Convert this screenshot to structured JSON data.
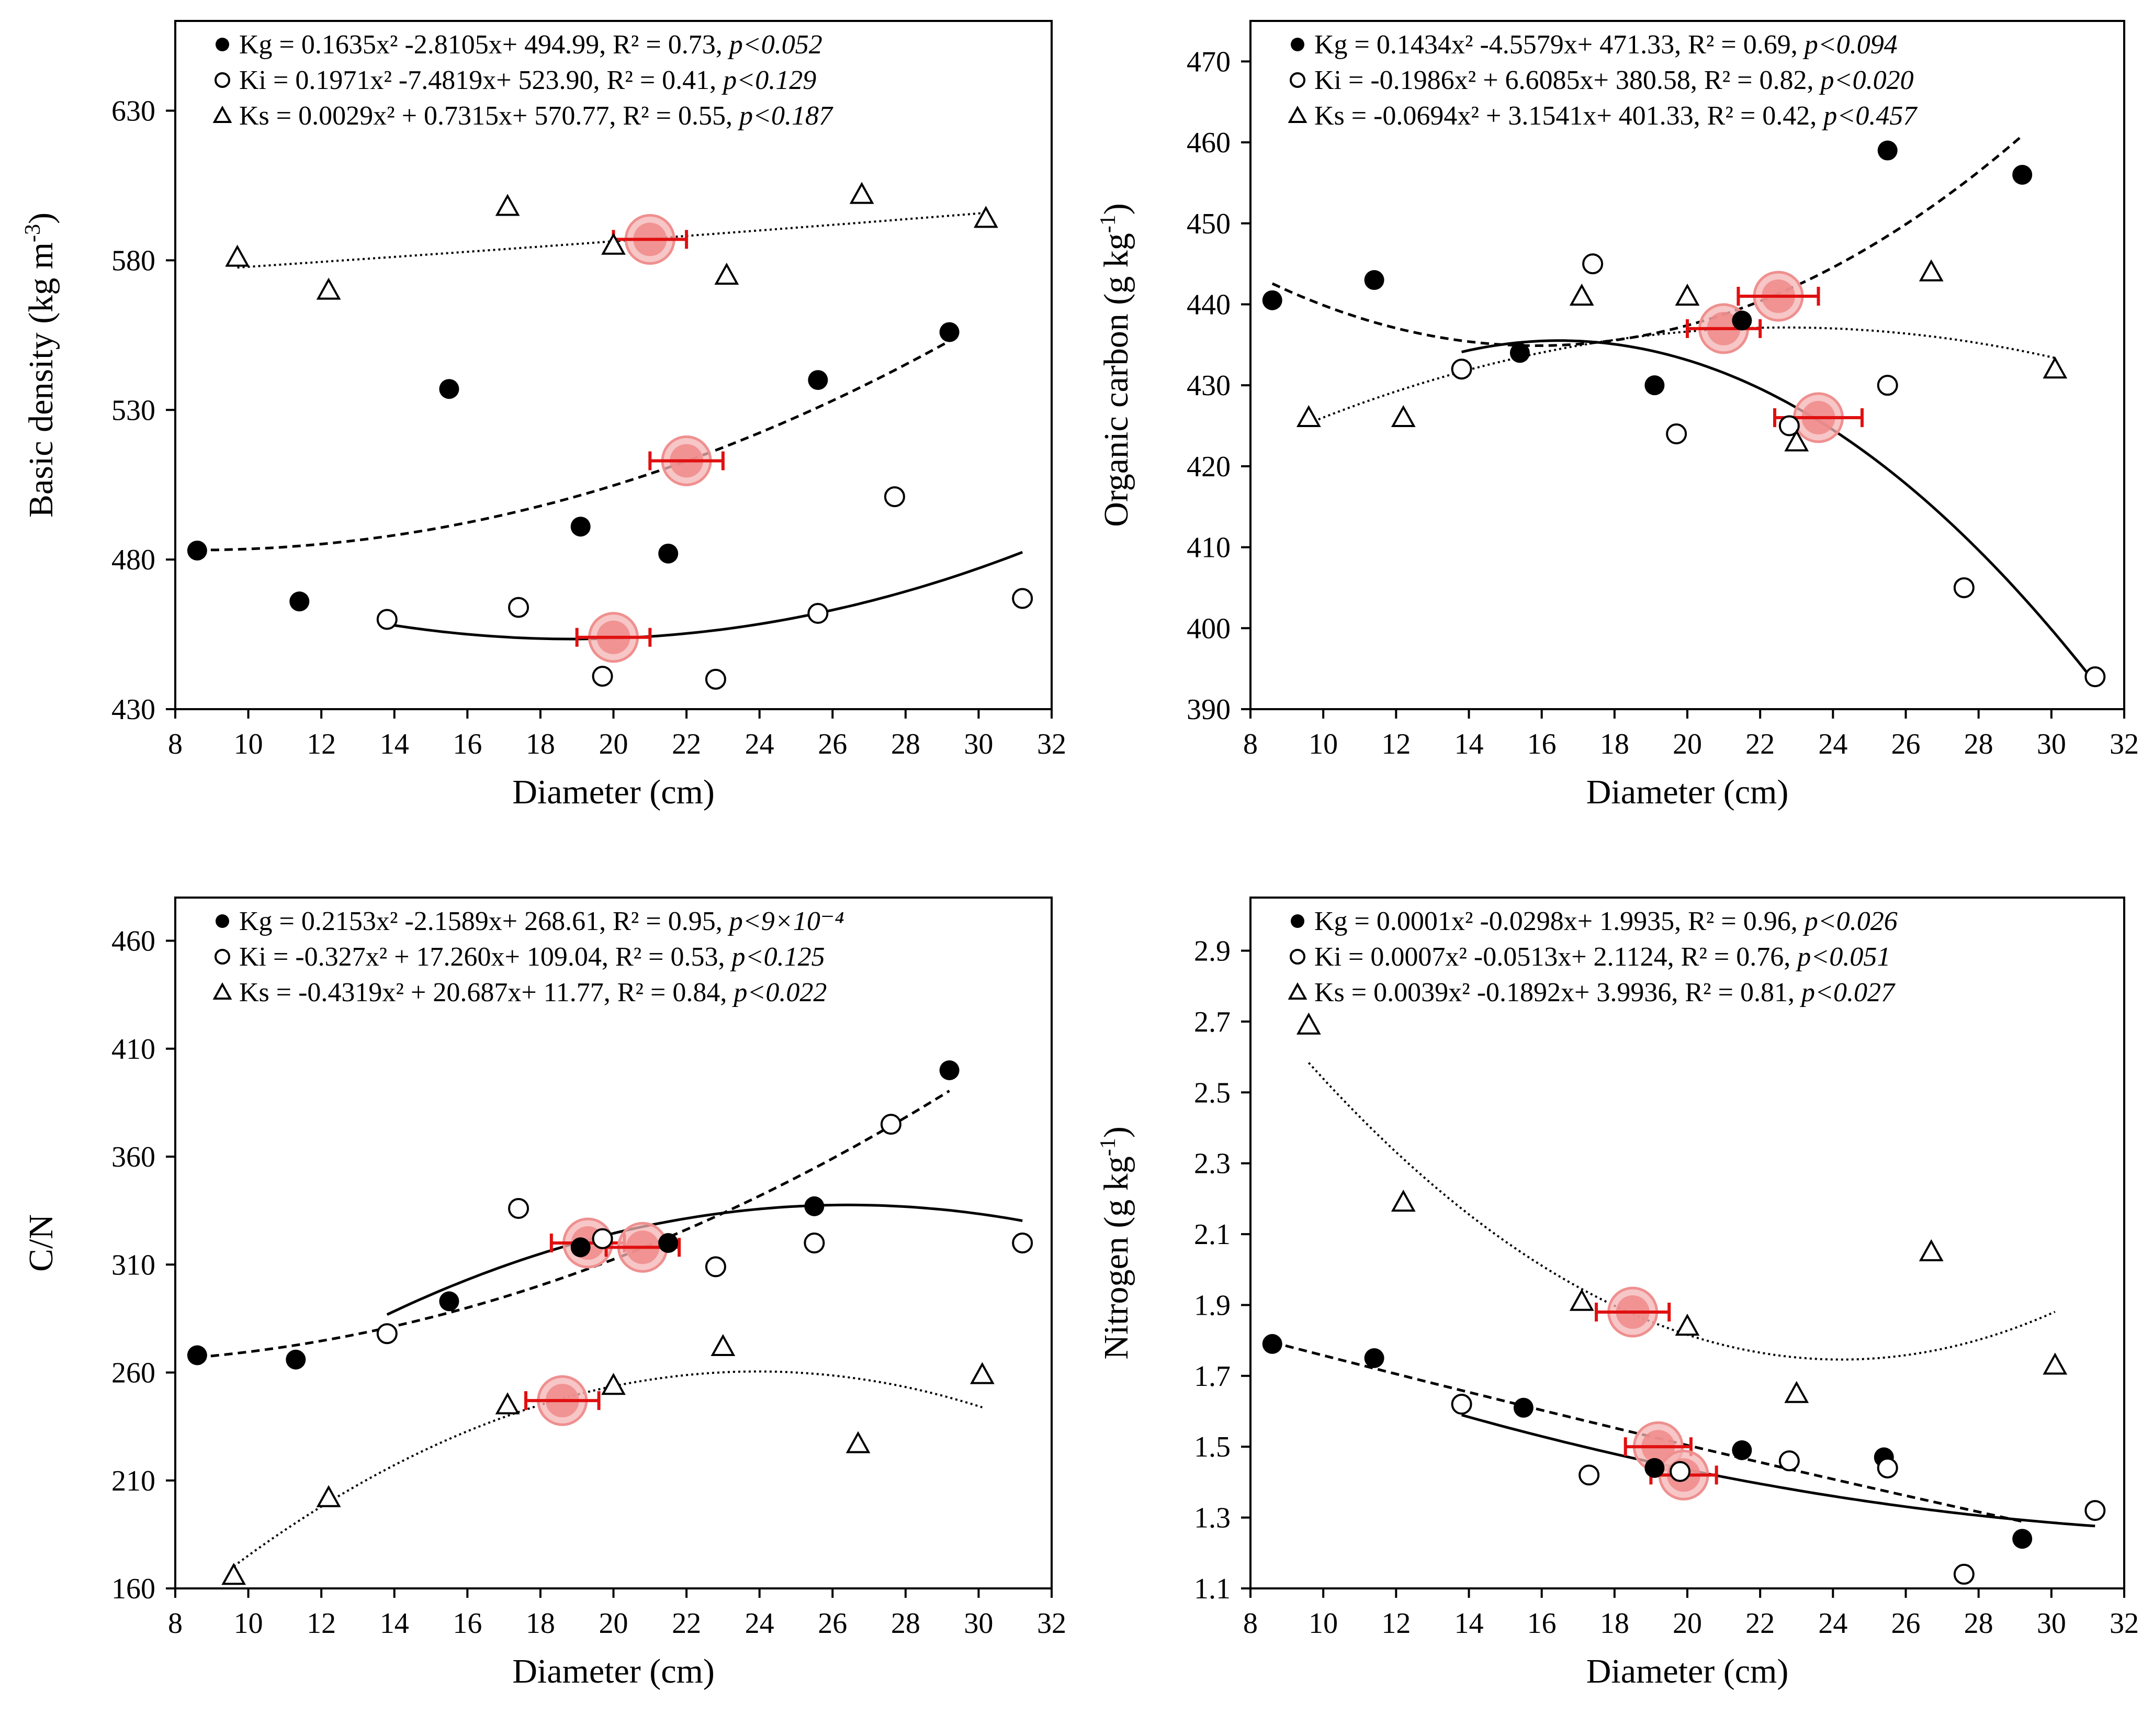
{
  "chart_data": [
    {
      "type": "scatter",
      "id": "basic-density",
      "xlabel": "Diameter (cm)",
      "ylabel": "Basic density (kg m-3)",
      "ylabel_main": "Basic density (kg m",
      "ylabel_sup": "-3",
      "ylabel_close": ")",
      "xlim": [
        8,
        32
      ],
      "ylim": [
        430,
        660
      ],
      "xticks": [
        8,
        10,
        12,
        14,
        16,
        18,
        20,
        22,
        24,
        26,
        28,
        30,
        32
      ],
      "yticks": [
        430,
        480,
        530,
        580,
        630
      ],
      "legend_position": "top",
      "series": [
        {
          "name": "Kg",
          "marker": "filled-circle",
          "legend_text": "Kg = 0.1635x² -2.8105x+ 494.99, R² = 0.73, ",
          "p_text": "p<0.052",
          "x": [
            8.6,
            11.4,
            15.5,
            19.1,
            21.5,
            25.6,
            29.2
          ],
          "y": [
            483,
            466,
            537,
            491,
            482,
            540,
            556
          ],
          "fit_style": "dashed",
          "fit_x": [
            8.6,
            29.2
          ]
        },
        {
          "name": "Ki",
          "marker": "open-circle",
          "legend_text": "Ki = 0.1971x² -7.4819x+ 523.90, R² = 0.41, ",
          "p_text": "p<0.129",
          "x": [
            13.8,
            17.4,
            19.7,
            22.8,
            25.6,
            27.7,
            31.2
          ],
          "y": [
            460,
            464,
            441,
            440,
            462,
            501,
            467
          ],
          "fit_style": "solid",
          "fit_x": [
            13.8,
            31.2
          ]
        },
        {
          "name": "Ks",
          "marker": "open-triangle",
          "legend_text": "Ks = 0.0029x² + 0.7315x+ 570.77, R² = 0.55, ",
          "p_text": "p<0.187",
          "x": [
            9.7,
            12.2,
            17.1,
            20.0,
            23.1,
            26.8,
            30.2
          ],
          "y": [
            581,
            570,
            598,
            585,
            575,
            602,
            594
          ],
          "fit_style": "dotted",
          "fit_x": [
            9.7,
            30.2
          ]
        }
      ],
      "mean_points": [
        {
          "x": 21.0,
          "y": 587,
          "xerr": 1.0
        },
        {
          "x": 22.0,
          "y": 513,
          "xerr": 1.0
        },
        {
          "x": 20.0,
          "y": 454,
          "xerr": 1.0
        }
      ]
    },
    {
      "type": "scatter",
      "id": "organic-carbon",
      "xlabel": "Diameter (cm)",
      "ylabel": "Organic carbon (g kg-1)",
      "ylabel_main": "Organic carbon (g kg",
      "ylabel_sup": "-1",
      "ylabel_close": ")",
      "xlim": [
        8,
        32
      ],
      "ylim": [
        390,
        475
      ],
      "xticks": [
        8,
        10,
        12,
        14,
        16,
        18,
        20,
        22,
        24,
        26,
        28,
        30,
        32
      ],
      "yticks": [
        390,
        400,
        410,
        420,
        430,
        440,
        450,
        460,
        470
      ],
      "legend_position": "top",
      "series": [
        {
          "name": "Kg",
          "marker": "filled-circle",
          "legend_text": "Kg = 0.1434x² -4.5579x+ 471.33, R² = 0.69, ",
          "p_text": "p<0.094",
          "x": [
            8.6,
            11.4,
            15.4,
            19.1,
            21.5,
            25.5,
            29.2
          ],
          "y": [
            440.5,
            443,
            434,
            430,
            438,
            459,
            456
          ],
          "fit_style": "dashed",
          "fit_x": [
            8.6,
            29.2
          ]
        },
        {
          "name": "Ki",
          "marker": "open-circle",
          "legend_text": "Ki = -0.1986x² + 6.6085x+ 380.58, R² = 0.82, ",
          "p_text": "p<0.020",
          "x": [
            13.8,
            17.4,
            19.7,
            22.8,
            25.5,
            27.6,
            31.2
          ],
          "y": [
            432,
            445,
            424,
            425,
            430,
            405,
            394
          ],
          "fit_style": "solid",
          "fit_x": [
            13.8,
            31.2
          ]
        },
        {
          "name": "Ks",
          "marker": "open-triangle",
          "legend_text": "Ks = -0.0694x² + 3.1541x+ 401.33, R² = 0.42, ",
          "p_text": "p<0.457",
          "x": [
            9.6,
            12.2,
            17.1,
            20.0,
            23.0,
            26.7,
            30.1
          ],
          "y": [
            426,
            426,
            441,
            441,
            423,
            444,
            432
          ],
          "fit_style": "dotted",
          "fit_x": [
            9.6,
            30.1
          ]
        }
      ],
      "mean_points": [
        {
          "x": 22.5,
          "y": 441,
          "xerr": 1.1
        },
        {
          "x": 21.0,
          "y": 437,
          "xerr": 1.0
        },
        {
          "x": 23.6,
          "y": 426,
          "xerr": 1.2
        }
      ]
    },
    {
      "type": "scatter",
      "id": "c-n-ratio",
      "xlabel": "Diameter (cm)",
      "ylabel": "C/N",
      "ylabel_main": "C/N",
      "ylabel_sup": "",
      "ylabel_close": "",
      "xlim": [
        8,
        32
      ],
      "ylim": [
        160,
        480
      ],
      "xticks": [
        8,
        10,
        12,
        14,
        16,
        18,
        20,
        22,
        24,
        26,
        28,
        30,
        32
      ],
      "yticks": [
        160,
        210,
        260,
        310,
        360,
        410,
        460
      ],
      "legend_position": "top",
      "series": [
        {
          "name": "Kg",
          "marker": "filled-circle",
          "legend_text": "Kg = 0.2153x² -2.1589x+ 268.61, R² = 0.95, ",
          "p_text": "p<9×10⁻⁴",
          "x": [
            8.6,
            11.3,
            15.5,
            19.1,
            21.5,
            25.5,
            29.2
          ],
          "y": [
            268,
            266,
            293,
            318,
            320,
            337,
            400
          ],
          "fit_style": "dashed",
          "fit_x": [
            8.6,
            29.2
          ]
        },
        {
          "name": "Ki",
          "marker": "open-circle",
          "legend_text": "Ki = -0.327x² + 17.260x+ 109.04, R² = 0.53, ",
          "p_text": "p<0.125",
          "x": [
            13.8,
            17.4,
            19.7,
            22.8,
            25.5,
            27.6,
            31.2
          ],
          "y": [
            278,
            336,
            322,
            309,
            320,
            375,
            320
          ],
          "fit_style": "solid",
          "fit_x": [
            13.8,
            31.2
          ]
        },
        {
          "name": "Ks",
          "marker": "open-triangle",
          "legend_text": "Ks = -0.4319x² + 20.687x+ 11.77, R² = 0.84, ",
          "p_text": "p<0.022",
          "x": [
            9.6,
            12.2,
            17.1,
            20.0,
            23.0,
            26.7,
            30.1
          ],
          "y": [
            166,
            202,
            245,
            254,
            272,
            227,
            259
          ],
          "fit_style": "dotted",
          "fit_x": [
            9.6,
            30.1
          ]
        }
      ],
      "mean_points": [
        {
          "x": 19.3,
          "y": 320,
          "xerr": 1.0
        },
        {
          "x": 20.8,
          "y": 318,
          "xerr": 1.0
        },
        {
          "x": 18.6,
          "y": 247,
          "xerr": 1.0
        }
      ]
    },
    {
      "type": "scatter",
      "id": "nitrogen",
      "xlabel": "Diameter (cm)",
      "ylabel": "Nitrogen (g kg-1)",
      "ylabel_main": "Nitrogen (g kg",
      "ylabel_sup": "-1",
      "ylabel_close": ")",
      "xlim": [
        8,
        32
      ],
      "ylim": [
        1.1,
        3.05
      ],
      "xticks": [
        8,
        10,
        12,
        14,
        16,
        18,
        20,
        22,
        24,
        26,
        28,
        30,
        32
      ],
      "yticks": [
        1.1,
        1.3,
        1.5,
        1.7,
        1.9,
        2.1,
        2.3,
        2.5,
        2.7,
        2.9
      ],
      "legend_position": "top",
      "series": [
        {
          "name": "Kg",
          "marker": "filled-circle",
          "legend_text": "Kg = 0.0001x² -0.0298x+ 1.9935, R² = 0.96, ",
          "p_text": "p<0.026",
          "x": [
            8.6,
            11.4,
            15.5,
            19.1,
            21.5,
            25.4,
            29.2
          ],
          "y": [
            1.79,
            1.75,
            1.61,
            1.44,
            1.49,
            1.47,
            1.24
          ],
          "fit_style": "dashed",
          "fit_x": [
            8.6,
            29.2
          ]
        },
        {
          "name": "Ki",
          "marker": "open-circle",
          "legend_text": "Ki = 0.0007x² -0.0513x+ 2.1124, R² = 0.76, ",
          "p_text": "p<0.051",
          "x": [
            13.8,
            17.3,
            19.8,
            22.8,
            25.5,
            27.6,
            31.2
          ],
          "y": [
            1.62,
            1.42,
            1.43,
            1.46,
            1.44,
            1.14,
            1.32
          ],
          "fit_style": "solid",
          "fit_x": [
            13.8,
            31.2
          ]
        },
        {
          "name": "Ks",
          "marker": "open-triangle",
          "legend_text": "Ks = 0.0039x² -0.1892x+ 3.9936, R² = 0.81, ",
          "p_text": "p<0.027",
          "x": [
            9.6,
            12.2,
            17.1,
            20.0,
            23.0,
            26.7,
            30.1
          ],
          "y": [
            2.69,
            2.19,
            1.91,
            1.84,
            1.65,
            2.05,
            1.73
          ],
          "fit_style": "dotted",
          "fit_x": [
            9.6,
            30.1
          ]
        }
      ],
      "mean_points": [
        {
          "x": 18.5,
          "y": 1.88,
          "xerr": 1.0
        },
        {
          "x": 19.2,
          "y": 1.5,
          "xerr": 0.9
        },
        {
          "x": 19.9,
          "y": 1.42,
          "xerr": 0.9
        }
      ]
    }
  ]
}
